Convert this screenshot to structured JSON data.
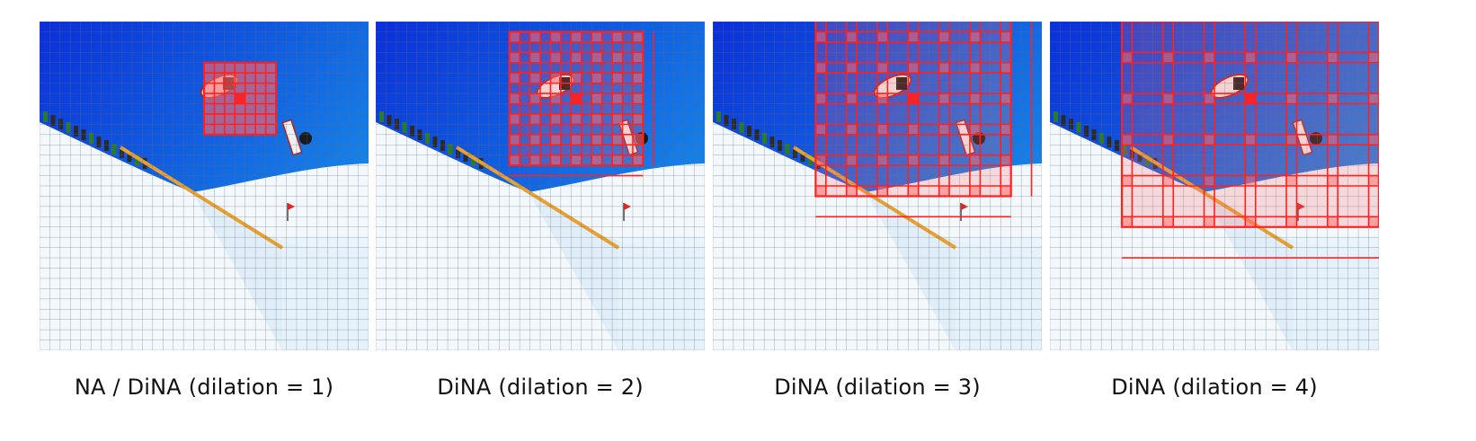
{
  "colors": {
    "sky_top": "#0a2fd9",
    "sky_bottom": "#1aa3ee",
    "snow": "#f2f8fc",
    "snow_shade": "#cfe6f4",
    "grid": "#6b6b6b",
    "window": "#ff2020",
    "window_fill": "#ff6a6a",
    "caption_text": "#111111"
  },
  "grid": {
    "cells": 32
  },
  "query_cell": {
    "row": 7,
    "col": 19
  },
  "kernel_size": 7,
  "panels": [
    {
      "caption": "NA / DiNA (dilation = 1)",
      "dilation": 1
    },
    {
      "caption": "DiNA (dilation = 2)",
      "dilation": 2
    },
    {
      "caption": "DiNA (dilation = 3)",
      "dilation": 3
    },
    {
      "caption": "DiNA (dilation = 4)",
      "dilation": 4
    }
  ]
}
